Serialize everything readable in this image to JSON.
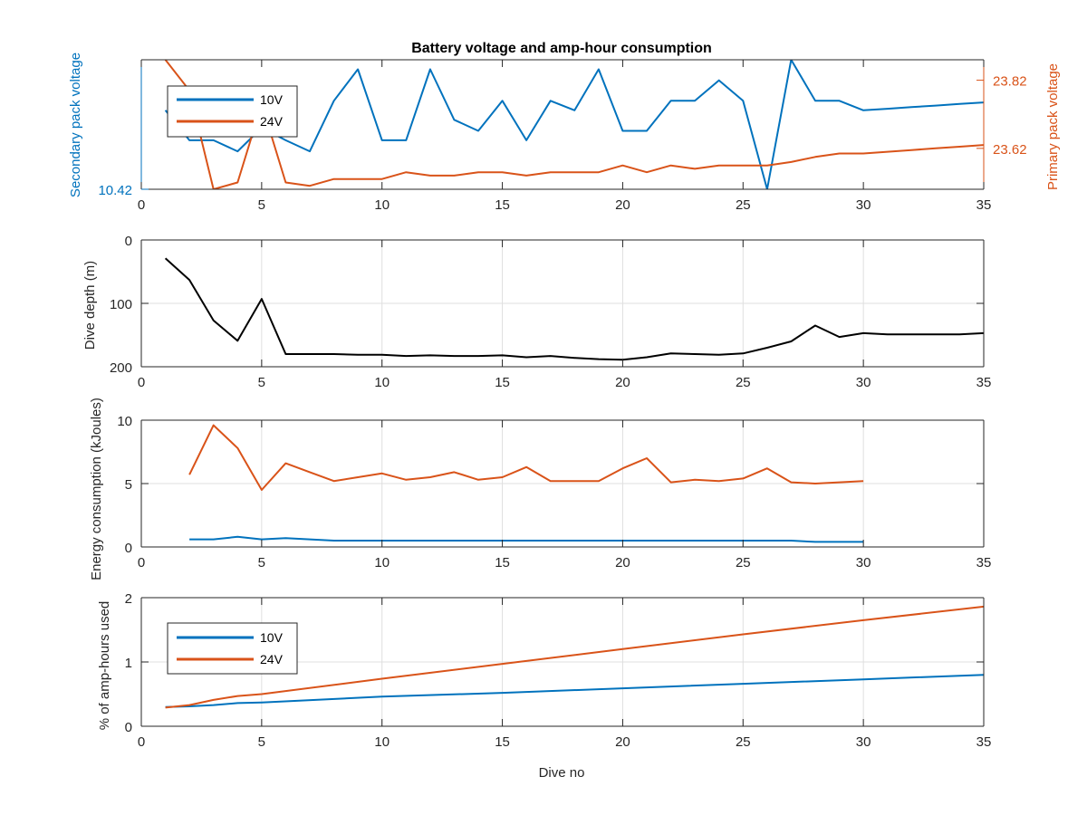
{
  "colors": {
    "v10": "#0072BD",
    "v24": "#D95319",
    "depth": "#000000",
    "grid": "#DFDFDF",
    "axis": "#262626"
  },
  "chart_data": [
    {
      "type": "line",
      "title": "Battery voltage and amp-hour consumption",
      "xlabel": "",
      "x_ticks": [
        "0",
        "5",
        "10",
        "15",
        "20",
        "25",
        "30",
        "35"
      ],
      "xlim": [
        0,
        35
      ],
      "ylabel_left": "Secondary pack voltage",
      "ylabel_right": "Primary pack voltage",
      "y_left_ticks": [
        "10.42"
      ],
      "y_right_ticks": [
        "23.82",
        "23.62"
      ],
      "legend": [
        "10V",
        "24V"
      ],
      "legend_position": "top-left",
      "series": [
        {
          "name": "10V",
          "axis": "left",
          "x": [
            1,
            2,
            3,
            4,
            5,
            6,
            7,
            8,
            9,
            10,
            11,
            12,
            13,
            14,
            15,
            16,
            17,
            18,
            19,
            20,
            21,
            22,
            23,
            24,
            25,
            26,
            27,
            28,
            29,
            30,
            31,
            32,
            33,
            34,
            35
          ],
          "y": [
            10.47,
            10.451,
            10.451,
            10.444,
            10.459,
            10.451,
            10.444,
            10.476,
            10.496,
            10.451,
            10.451,
            10.496,
            10.464,
            10.457,
            10.476,
            10.451,
            10.476,
            10.47,
            10.496,
            10.457,
            10.457,
            10.476,
            10.476,
            10.489,
            10.476,
            10.42,
            10.502,
            10.476,
            10.476,
            10.47,
            10.471,
            10.472,
            10.473,
            10.474,
            10.475
          ]
        },
        {
          "name": "24V",
          "axis": "right",
          "x": [
            1,
            2,
            3,
            4,
            5,
            6,
            7,
            8,
            9,
            10,
            11,
            12,
            13,
            14,
            15,
            16,
            17,
            18,
            19,
            20,
            21,
            22,
            23,
            24,
            25,
            26,
            27,
            28,
            29,
            30,
            31,
            32,
            33,
            34,
            35
          ],
          "y": [
            23.88,
            23.79,
            23.5,
            23.52,
            23.75,
            23.52,
            23.51,
            23.53,
            23.53,
            23.53,
            23.55,
            23.54,
            23.54,
            23.55,
            23.55,
            23.54,
            23.55,
            23.55,
            23.55,
            23.57,
            23.55,
            23.57,
            23.56,
            23.57,
            23.57,
            23.57,
            23.58,
            23.595,
            23.605,
            23.605,
            23.61,
            23.615,
            23.62,
            23.625,
            23.63
          ]
        }
      ]
    },
    {
      "type": "line",
      "title": "",
      "xlabel": "",
      "ylabel": "Dive depth (m)",
      "x_ticks": [
        "0",
        "5",
        "10",
        "15",
        "20",
        "25",
        "30",
        "35"
      ],
      "y_ticks": [
        "0",
        "100",
        "200"
      ],
      "xlim": [
        0,
        35
      ],
      "ylim": [
        0,
        200
      ],
      "y_reversed": true,
      "series": [
        {
          "x": [
            1,
            2,
            3,
            4,
            5,
            6,
            7,
            8,
            9,
            10,
            11,
            12,
            13,
            14,
            15,
            16,
            17,
            18,
            19,
            20,
            21,
            22,
            23,
            24,
            25,
            26,
            27,
            28,
            29,
            30,
            31,
            32,
            33,
            34,
            35
          ],
          "y": [
            29,
            63,
            127,
            159,
            93,
            180,
            180,
            180,
            181,
            181,
            183,
            182,
            183,
            183,
            182,
            185,
            183,
            186,
            188,
            189,
            185,
            179,
            180,
            181,
            179,
            170,
            160,
            135,
            153,
            147,
            149,
            149,
            149,
            149,
            147
          ]
        }
      ]
    },
    {
      "type": "line",
      "title": "",
      "xlabel": "",
      "ylabel": "Energy consumption (kJoules)",
      "x_ticks": [
        "0",
        "5",
        "10",
        "15",
        "20",
        "25",
        "30",
        "35"
      ],
      "y_ticks": [
        "0",
        "5",
        "10"
      ],
      "xlim": [
        0,
        35
      ],
      "ylim": [
        0,
        10
      ],
      "series": [
        {
          "name": "10V",
          "x": [
            2,
            3,
            4,
            5,
            6,
            7,
            8,
            9,
            10,
            11,
            12,
            13,
            14,
            15,
            16,
            17,
            18,
            19,
            20,
            21,
            22,
            23,
            24,
            25,
            26,
            27,
            28,
            29,
            30
          ],
          "y": [
            0.6,
            0.6,
            0.8,
            0.6,
            0.7,
            0.6,
            0.5,
            0.5,
            0.5,
            0.5,
            0.5,
            0.5,
            0.5,
            0.5,
            0.5,
            0.5,
            0.5,
            0.5,
            0.5,
            0.5,
            0.5,
            0.5,
            0.5,
            0.5,
            0.5,
            0.5,
            0.4,
            0.4,
            0.4
          ]
        },
        {
          "name": "24V",
          "x": [
            2,
            3,
            4,
            5,
            6,
            7,
            8,
            9,
            10,
            11,
            12,
            13,
            14,
            15,
            16,
            17,
            18,
            19,
            20,
            21,
            22,
            23,
            24,
            25,
            26,
            27,
            28,
            29,
            30
          ],
          "y": [
            5.7,
            9.6,
            7.8,
            4.5,
            6.6,
            5.9,
            5.2,
            5.5,
            5.8,
            5.3,
            5.5,
            5.9,
            5.3,
            5.5,
            6.3,
            5.2,
            5.2,
            5.2,
            6.2,
            7.0,
            5.1,
            5.3,
            5.2,
            5.4,
            6.2,
            5.1,
            5.0,
            5.1,
            5.2
          ]
        }
      ]
    },
    {
      "type": "line",
      "title": "",
      "xlabel": "Dive no",
      "ylabel": "% of amp-hours used",
      "x_ticks": [
        "0",
        "5",
        "10",
        "15",
        "20",
        "25",
        "30",
        "35"
      ],
      "y_ticks": [
        "0",
        "1",
        "2"
      ],
      "xlim": [
        0,
        35
      ],
      "ylim": [
        0,
        2
      ],
      "legend": [
        "10V",
        "24V"
      ],
      "legend_position": "top-left",
      "series": [
        {
          "name": "10V",
          "x": [
            1,
            2,
            3,
            4,
            5,
            10,
            15,
            20,
            25,
            30,
            35
          ],
          "y": [
            0.3,
            0.31,
            0.33,
            0.36,
            0.37,
            0.46,
            0.52,
            0.59,
            0.66,
            0.73,
            0.8
          ]
        },
        {
          "name": "24V",
          "x": [
            1,
            2,
            3,
            4,
            5,
            10,
            15,
            20,
            25,
            30,
            35
          ],
          "y": [
            0.29,
            0.33,
            0.41,
            0.47,
            0.5,
            0.74,
            0.97,
            1.2,
            1.43,
            1.65,
            1.86
          ]
        }
      ]
    }
  ]
}
